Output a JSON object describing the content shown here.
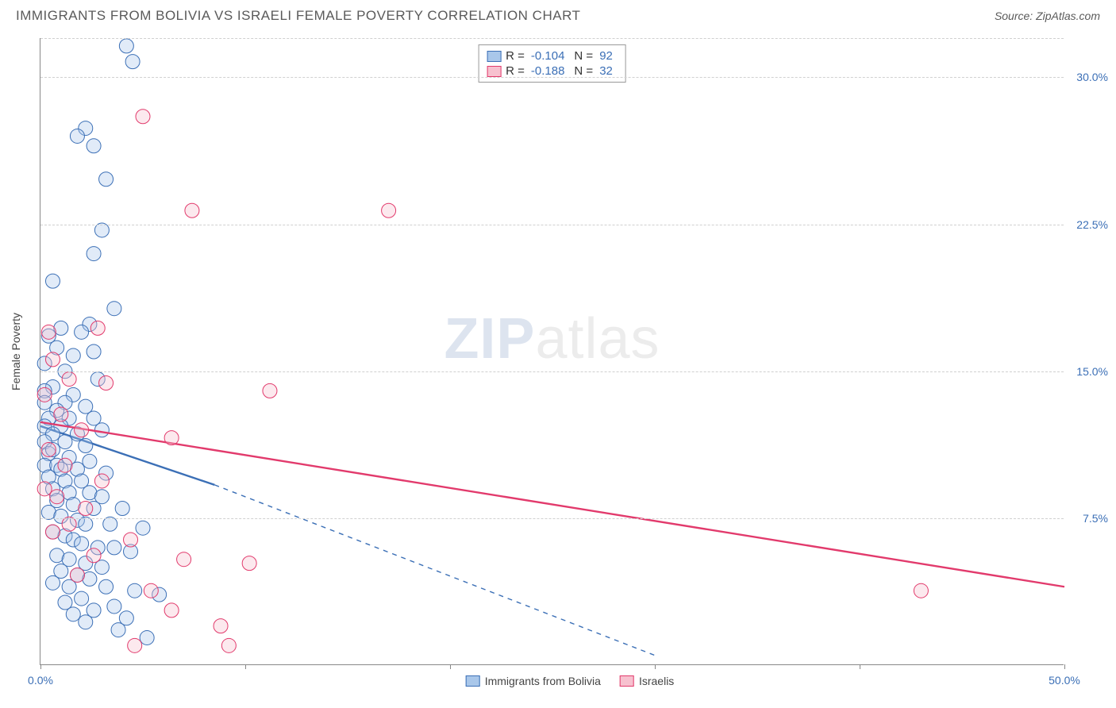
{
  "header": {
    "title": "IMMIGRANTS FROM BOLIVIA VS ISRAELI FEMALE POVERTY CORRELATION CHART",
    "source": "Source: ZipAtlas.com"
  },
  "watermark": {
    "bold": "ZIP",
    "rest": "atlas"
  },
  "chart": {
    "type": "scatter",
    "ylabel": "Female Poverty",
    "background_color": "#ffffff",
    "grid_color": "#d0d0d0",
    "axis_color": "#888888",
    "label_color": "#3b6fb6",
    "marker_radius": 9,
    "marker_fill_opacity": 0.35,
    "line_width": 2.4,
    "xlim": [
      0,
      50
    ],
    "ylim": [
      0,
      32
    ],
    "ytick_values": [
      7.5,
      15.0,
      22.5,
      30.0
    ],
    "ytick_labels": [
      "7.5%",
      "15.0%",
      "22.5%",
      "30.0%"
    ],
    "xtick_values": [
      0,
      10,
      20,
      30,
      40,
      50
    ],
    "xtick_label_left": "0.0%",
    "xtick_label_right": "50.0%",
    "legend_top": [
      {
        "swatch_fill": "#a9c7ea",
        "swatch_border": "#3b6fb6",
        "r_label": "R =",
        "r_value": "-0.104",
        "n_label": "N =",
        "n_value": "92"
      },
      {
        "swatch_fill": "#f7c1cf",
        "swatch_border": "#e23a6c",
        "r_label": "R =",
        "r_value": "-0.188",
        "n_label": "N =",
        "n_value": "32"
      }
    ],
    "legend_bottom": [
      {
        "swatch_fill": "#a9c7ea",
        "swatch_border": "#3b6fb6",
        "label": "Immigrants from Bolivia"
      },
      {
        "swatch_fill": "#f7c1cf",
        "swatch_border": "#e23a6c",
        "label": "Israelis"
      }
    ],
    "series": [
      {
        "name": "Immigrants from Bolivia",
        "color_stroke": "#3b6fb6",
        "color_fill": "#a9c7ea",
        "trend": {
          "solid_from": [
            0,
            12.2
          ],
          "solid_to": [
            8.5,
            9.2
          ],
          "dashed_to": [
            30,
            0.5
          ]
        },
        "points": [
          [
            4.2,
            31.6
          ],
          [
            4.5,
            30.8
          ],
          [
            2.2,
            27.4
          ],
          [
            1.8,
            27.0
          ],
          [
            2.6,
            26.5
          ],
          [
            3.2,
            24.8
          ],
          [
            3.0,
            22.2
          ],
          [
            2.6,
            21.0
          ],
          [
            0.6,
            19.6
          ],
          [
            3.6,
            18.2
          ],
          [
            0.4,
            16.8
          ],
          [
            1.0,
            17.2
          ],
          [
            2.4,
            17.4
          ],
          [
            2.0,
            17.0
          ],
          [
            0.8,
            16.2
          ],
          [
            1.6,
            15.8
          ],
          [
            2.6,
            16.0
          ],
          [
            0.2,
            15.4
          ],
          [
            1.2,
            15.0
          ],
          [
            2.8,
            14.6
          ],
          [
            0.6,
            14.2
          ],
          [
            0.2,
            14.0
          ],
          [
            1.6,
            13.8
          ],
          [
            0.2,
            13.4
          ],
          [
            1.2,
            13.4
          ],
          [
            2.2,
            13.2
          ],
          [
            0.8,
            13.0
          ],
          [
            0.4,
            12.6
          ],
          [
            1.4,
            12.6
          ],
          [
            2.6,
            12.6
          ],
          [
            0.2,
            12.2
          ],
          [
            1.0,
            12.2
          ],
          [
            0.6,
            11.8
          ],
          [
            1.8,
            11.8
          ],
          [
            3.0,
            12.0
          ],
          [
            0.2,
            11.4
          ],
          [
            1.2,
            11.4
          ],
          [
            2.2,
            11.2
          ],
          [
            0.4,
            10.8
          ],
          [
            0.6,
            11.0
          ],
          [
            1.4,
            10.6
          ],
          [
            2.4,
            10.4
          ],
          [
            0.2,
            10.2
          ],
          [
            0.8,
            10.2
          ],
          [
            1.0,
            10.0
          ],
          [
            1.8,
            10.0
          ],
          [
            3.2,
            9.8
          ],
          [
            0.4,
            9.6
          ],
          [
            1.2,
            9.4
          ],
          [
            2.0,
            9.4
          ],
          [
            0.6,
            9.0
          ],
          [
            1.4,
            8.8
          ],
          [
            2.4,
            8.8
          ],
          [
            3.0,
            8.6
          ],
          [
            0.8,
            8.4
          ],
          [
            1.6,
            8.2
          ],
          [
            2.6,
            8.0
          ],
          [
            4.0,
            8.0
          ],
          [
            0.4,
            7.8
          ],
          [
            1.0,
            7.6
          ],
          [
            1.8,
            7.4
          ],
          [
            2.2,
            7.2
          ],
          [
            3.4,
            7.2
          ],
          [
            5.0,
            7.0
          ],
          [
            0.6,
            6.8
          ],
          [
            1.2,
            6.6
          ],
          [
            1.6,
            6.4
          ],
          [
            2.0,
            6.2
          ],
          [
            2.8,
            6.0
          ],
          [
            3.6,
            6.0
          ],
          [
            4.4,
            5.8
          ],
          [
            0.8,
            5.6
          ],
          [
            1.4,
            5.4
          ],
          [
            2.2,
            5.2
          ],
          [
            3.0,
            5.0
          ],
          [
            1.0,
            4.8
          ],
          [
            1.8,
            4.6
          ],
          [
            2.4,
            4.4
          ],
          [
            0.6,
            4.2
          ],
          [
            1.4,
            4.0
          ],
          [
            3.2,
            4.0
          ],
          [
            4.6,
            3.8
          ],
          [
            5.8,
            3.6
          ],
          [
            2.0,
            3.4
          ],
          [
            1.2,
            3.2
          ],
          [
            3.6,
            3.0
          ],
          [
            2.6,
            2.8
          ],
          [
            1.6,
            2.6
          ],
          [
            4.2,
            2.4
          ],
          [
            2.2,
            2.2
          ],
          [
            3.8,
            1.8
          ],
          [
            5.2,
            1.4
          ]
        ]
      },
      {
        "name": "Israelis",
        "color_stroke": "#e23a6c",
        "color_fill": "#f7c1cf",
        "trend": {
          "solid_from": [
            0,
            12.4
          ],
          "solid_to": [
            50,
            4.0
          ],
          "dashed_to": null
        },
        "points": [
          [
            5.0,
            28.0
          ],
          [
            7.4,
            23.2
          ],
          [
            17.0,
            23.2
          ],
          [
            0.4,
            17.0
          ],
          [
            2.8,
            17.2
          ],
          [
            0.6,
            15.6
          ],
          [
            1.4,
            14.6
          ],
          [
            3.2,
            14.4
          ],
          [
            11.2,
            14.0
          ],
          [
            0.2,
            13.8
          ],
          [
            1.0,
            12.8
          ],
          [
            2.0,
            12.0
          ],
          [
            6.4,
            11.6
          ],
          [
            0.4,
            11.0
          ],
          [
            1.2,
            10.2
          ],
          [
            3.0,
            9.4
          ],
          [
            0.8,
            8.6
          ],
          [
            2.2,
            8.0
          ],
          [
            1.4,
            7.2
          ],
          [
            4.4,
            6.4
          ],
          [
            0.2,
            9.0
          ],
          [
            0.6,
            6.8
          ],
          [
            2.6,
            5.6
          ],
          [
            7.0,
            5.4
          ],
          [
            10.2,
            5.2
          ],
          [
            1.8,
            4.6
          ],
          [
            5.4,
            3.8
          ],
          [
            6.4,
            2.8
          ],
          [
            8.8,
            2.0
          ],
          [
            4.6,
            1.0
          ],
          [
            9.2,
            1.0
          ],
          [
            43.0,
            3.8
          ]
        ]
      }
    ]
  }
}
